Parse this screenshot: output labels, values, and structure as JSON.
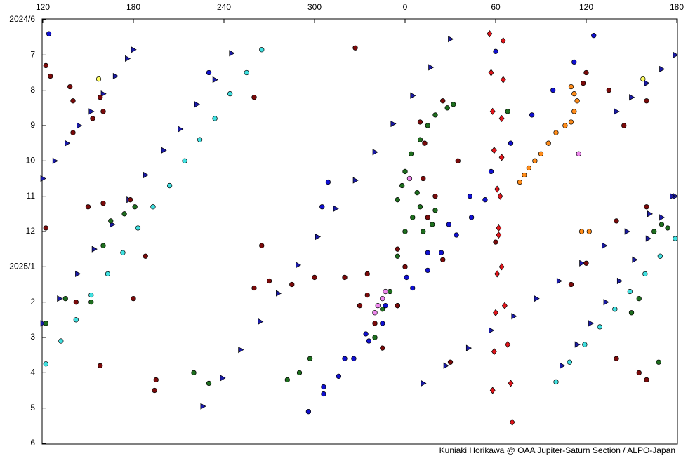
{
  "chart_data": {
    "type": "scatter",
    "credit": "Kuniaki Horikawa @ OAA Jupiter-Saturn Section / ALPO-Japan",
    "xlim": [
      120,
      540
    ],
    "ylim": [
      6,
      18
    ],
    "y_inverted": true,
    "xticks": [
      120,
      180,
      240,
      300,
      {
        "value": 360,
        "label": "0"
      },
      {
        "value": 420,
        "label": "60"
      },
      {
        "value": 480,
        "label": "120"
      },
      {
        "value": 540,
        "label": "180"
      }
    ],
    "yticks": [
      {
        "value": 6,
        "label": "2024/6"
      },
      7,
      8,
      9,
      10,
      11,
      12,
      {
        "value": 13,
        "label": "2025/1"
      },
      {
        "value": 14,
        "label": "2"
      },
      {
        "value": 15,
        "label": "3"
      },
      {
        "value": 16,
        "label": "4"
      },
      {
        "value": 17,
        "label": "5"
      },
      {
        "value": 18,
        "label": "6"
      }
    ],
    "series": [
      {
        "color": "#1a1aa8",
        "marker": "triangle",
        "x": [
          120,
          128,
          136,
          144,
          152,
          160,
          168,
          176,
          180,
          120,
          131,
          143,
          154,
          166,
          177,
          188,
          200,
          211,
          222,
          234,
          245,
          226,
          239,
          251,
          264,
          276,
          289,
          302,
          314,
          327,
          340,
          352,
          365,
          377,
          390,
          464,
          474,
          483,
          493,
          502,
          512,
          521,
          530,
          539,
          372,
          387,
          402,
          417,
          432,
          447,
          462,
          477,
          492,
          507,
          522,
          537,
          500,
          510,
          520,
          530,
          539
        ],
        "values": [
          10.5,
          10.0,
          9.5,
          9.0,
          8.6,
          8.1,
          7.6,
          7.1,
          6.85,
          14.6,
          13.9,
          13.2,
          12.5,
          11.8,
          11.1,
          10.4,
          9.7,
          9.1,
          8.4,
          7.7,
          6.95,
          16.95,
          16.15,
          15.35,
          14.55,
          13.75,
          12.95,
          12.15,
          11.35,
          10.55,
          9.75,
          8.95,
          8.15,
          7.35,
          6.55,
          15.8,
          15.2,
          14.6,
          14.0,
          13.4,
          12.8,
          12.2,
          11.6,
          11.0,
          16.3,
          15.8,
          15.3,
          14.8,
          14.4,
          13.9,
          13.4,
          12.9,
          12.4,
          12.0,
          11.5,
          11.0,
          8.6,
          8.2,
          7.8,
          7.4,
          7.0
        ]
      },
      {
        "color": "#1010d0",
        "marker": "circle",
        "x": [
          296,
          306,
          316,
          326,
          336,
          345,
          355,
          365,
          375,
          384,
          394,
          404,
          413,
          306,
          320,
          334,
          347,
          361,
          375,
          389,
          403,
          417,
          430,
          444,
          458,
          472,
          485,
          124,
          230,
          420,
          309,
          305
        ],
        "values": [
          17.1,
          16.6,
          16.1,
          15.6,
          15.1,
          14.6,
          14.1,
          13.6,
          13.1,
          12.6,
          12.1,
          11.6,
          11.1,
          16.4,
          15.6,
          14.9,
          14.1,
          13.3,
          12.6,
          11.8,
          11.0,
          10.3,
          9.5,
          8.7,
          8.0,
          7.2,
          6.45,
          6.4,
          7.5,
          6.9,
          10.6,
          11.3
        ]
      },
      {
        "color": "#40e0e0",
        "marker": "circle",
        "x": [
          265,
          255,
          244,
          234,
          224,
          214,
          204,
          193,
          183,
          173,
          163,
          152,
          142,
          132,
          122,
          539,
          529,
          519,
          509,
          499,
          489,
          479,
          469,
          460
        ],
        "values": [
          6.85,
          7.5,
          8.1,
          8.8,
          9.4,
          10.0,
          10.7,
          11.3,
          11.9,
          12.6,
          13.2,
          13.8,
          14.5,
          15.1,
          15.75,
          12.2,
          12.7,
          13.2,
          13.7,
          14.2,
          14.7,
          15.2,
          15.7,
          16.26
        ]
      },
      {
        "color": "#e0141a",
        "marker": "diamond",
        "x": [
          416,
          417,
          418,
          419,
          421,
          422,
          424,
          426,
          428,
          430,
          431,
          425,
          425,
          424,
          424,
          423,
          422,
          421,
          420,
          419,
          418
        ],
        "values": [
          6.4,
          7.5,
          8.6,
          9.7,
          10.8,
          11.9,
          13.0,
          14.1,
          15.2,
          16.3,
          17.4,
          6.6,
          7.7,
          8.8,
          9.9,
          11.0,
          12.1,
          13.2,
          14.3,
          15.4,
          16.5
        ]
      },
      {
        "color": "#7a0a0a",
        "marker": "circle",
        "x": [
          122,
          125,
          138,
          140,
          160,
          158,
          153,
          140,
          150,
          160,
          178,
          122,
          180,
          188,
          142,
          260,
          265,
          260,
          270,
          285,
          300,
          320,
          335,
          330,
          335,
          340,
          345,
          355,
          360,
          355,
          375,
          380,
          372,
          373,
          370,
          385,
          395,
          327,
          385,
          390,
          420,
          470,
          480,
          500,
          520,
          500,
          515,
          520,
          480,
          478,
          495,
          505,
          520,
          158,
          195,
          194
        ],
        "values": [
          7.3,
          7.6,
          7.9,
          8.3,
          8.6,
          8.2,
          8.8,
          9.2,
          11.3,
          11.2,
          11.1,
          11.9,
          13.9,
          12.7,
          14.0,
          8.2,
          12.4,
          13.6,
          13.4,
          13.5,
          13.3,
          13.3,
          13.8,
          14.1,
          13.2,
          14.6,
          15.3,
          14.1,
          13.0,
          12.5,
          11.6,
          11.0,
          10.5,
          9.5,
          8.9,
          8.3,
          10.0,
          6.8,
          12.8,
          15.7,
          12.3,
          13.5,
          12.9,
          11.7,
          11.3,
          15.6,
          16.0,
          16.2,
          7.5,
          7.8,
          8.0,
          9.0,
          8.3,
          15.8,
          16.2,
          16.5
        ]
      },
      {
        "color": "#1e6e1e",
        "marker": "circle",
        "x": [
          340,
          345,
          350,
          355,
          360,
          365,
          370,
          372,
          378,
          380,
          368,
          360,
          364,
          370,
          375,
          380,
          388,
          392,
          355,
          358,
          152,
          135,
          160,
          165,
          174,
          181,
          122,
          525,
          530,
          534,
          515,
          510,
          290,
          282,
          297,
          528,
          428,
          230,
          220
        ],
        "values": [
          15.0,
          14.2,
          13.7,
          12.7,
          12.0,
          11.6,
          11.3,
          12.0,
          11.8,
          11.4,
          10.9,
          10.3,
          9.8,
          9.4,
          9.0,
          8.7,
          8.5,
          8.4,
          11.1,
          10.7,
          14.0,
          13.9,
          12.4,
          11.7,
          11.5,
          11.3,
          14.6,
          12.0,
          11.8,
          11.9,
          13.9,
          14.3,
          16.0,
          16.2,
          15.6,
          15.7,
          8.6,
          16.3,
          16.0
        ]
      },
      {
        "color": "#ff8c1a",
        "marker": "circle",
        "x": [
          474,
          472,
          470,
          466,
          460,
          455,
          450,
          446,
          442,
          439,
          436,
          470,
          472,
          477,
          482
        ],
        "values": [
          8.3,
          8.6,
          8.9,
          9.0,
          9.2,
          9.5,
          9.8,
          10.0,
          10.2,
          10.4,
          10.6,
          7.9,
          8.1,
          12.0,
          12.0
        ]
      },
      {
        "color": "#ffff60",
        "marker": "circle",
        "x": [
          157,
          517.6
        ],
        "values": [
          7.68,
          7.68
        ]
      },
      {
        "color": "#ee88ee",
        "marker": "circle",
        "x": [
          363,
          345,
          347,
          342,
          340,
          475
        ],
        "values": [
          10.5,
          13.9,
          13.7,
          14.1,
          14.3,
          9.8
        ]
      }
    ]
  }
}
